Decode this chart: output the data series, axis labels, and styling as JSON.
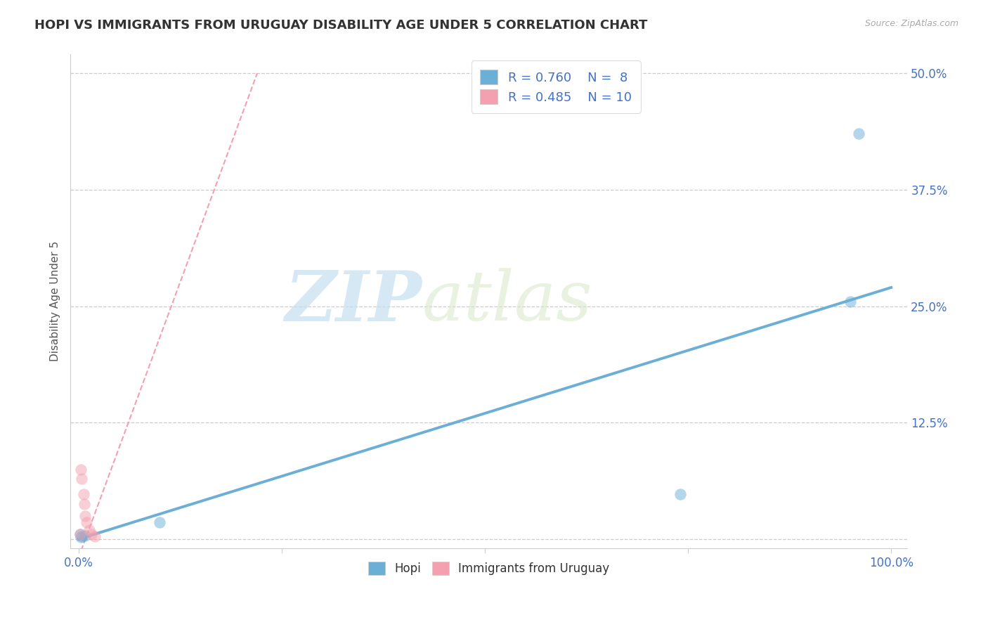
{
  "title": "HOPI VS IMMIGRANTS FROM URUGUAY DISABILITY AGE UNDER 5 CORRELATION CHART",
  "source": "Source: ZipAtlas.com",
  "ylabel": "Disability Age Under 5",
  "xlim": [
    -0.01,
    1.02
  ],
  "ylim": [
    -0.01,
    0.52
  ],
  "xticks": [
    0.0,
    0.25,
    0.5,
    0.75,
    1.0
  ],
  "xtick_labels_show": [
    "0.0%",
    "",
    "",
    "",
    "100.0%"
  ],
  "yticks": [
    0.0,
    0.125,
    0.25,
    0.375,
    0.5
  ],
  "ytick_labels": [
    "",
    "12.5%",
    "25.0%",
    "37.5%",
    "50.0%"
  ],
  "hopi_color": "#6baed6",
  "uruguay_color": "#f4a0b0",
  "hopi_R": "0.760",
  "hopi_N": "8",
  "uruguay_R": "0.485",
  "uruguay_N": "10",
  "hopi_scatter_x": [
    0.002,
    0.003,
    0.005,
    0.008,
    0.1,
    0.74,
    0.95,
    0.96
  ],
  "hopi_scatter_y": [
    0.005,
    0.002,
    0.003,
    0.004,
    0.018,
    0.048,
    0.255,
    0.435
  ],
  "uruguay_scatter_x": [
    0.002,
    0.003,
    0.004,
    0.006,
    0.007,
    0.008,
    0.01,
    0.013,
    0.016,
    0.02
  ],
  "uruguay_scatter_y": [
    0.005,
    0.075,
    0.065,
    0.048,
    0.038,
    0.025,
    0.018,
    0.01,
    0.005,
    0.003
  ],
  "hopi_line_x": [
    0.0,
    1.0
  ],
  "hopi_line_y": [
    0.0,
    0.27
  ],
  "uruguay_line_x": [
    0.0,
    0.22
  ],
  "uruguay_line_y": [
    -0.02,
    0.5
  ],
  "watermark_zip": "ZIP",
  "watermark_atlas": "atlas",
  "background_color": "#ffffff",
  "grid_color": "#cccccc",
  "title_fontsize": 13,
  "axis_label_fontsize": 11,
  "tick_fontsize": 12,
  "legend_R_color": "#4472c4",
  "scatter_alpha": 0.5,
  "scatter_size": 140
}
